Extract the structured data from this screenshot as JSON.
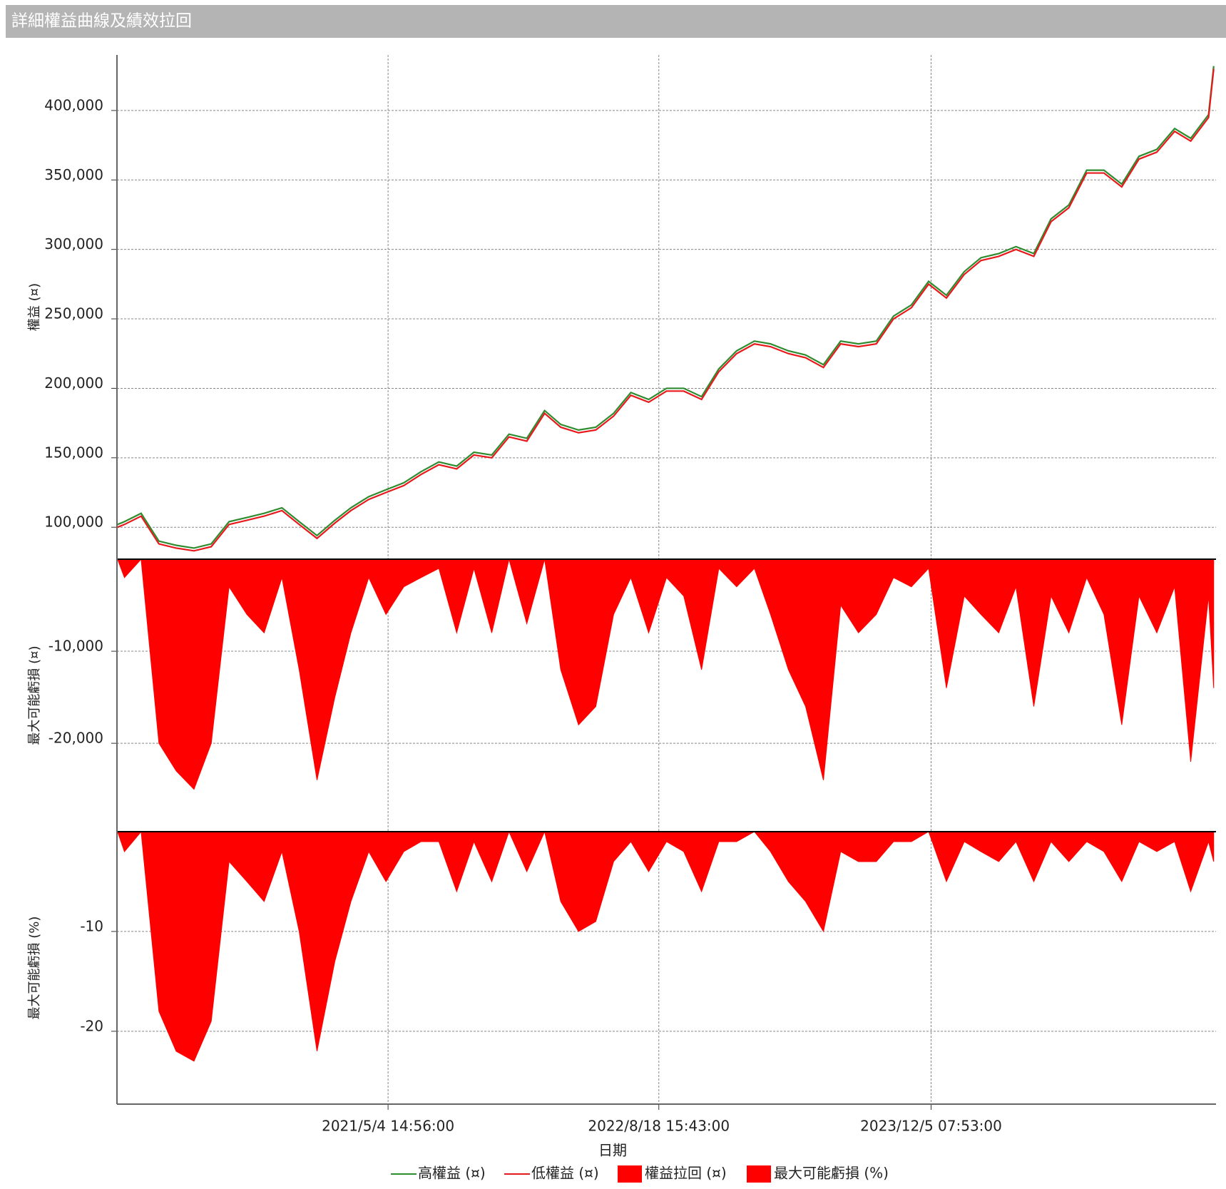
{
  "chart_data": {
    "type": "line",
    "title": "詳細權益曲線及績效拉回",
    "xlabel": "日期",
    "grid": true,
    "xlim": [
      "2020-01-19T00:00:00",
      "2025-04-14T00:00:00"
    ],
    "xticks": [
      {
        "value": "2021-05-04T14:56:00",
        "label": "2021/5/4 14:56:00"
      },
      {
        "value": "2022-08-18T15:43:00",
        "label": "2022/8/18 15:43:00"
      },
      {
        "value": "2023-12-05T07:53:00",
        "label": "2023/12/5 07:53:00"
      }
    ],
    "x": [
      "2020-01-20T00:00:00",
      "2020-02-01T00:00:00",
      "2020-03-01T00:00:00",
      "2020-04-01T00:00:00",
      "2020-05-01T00:00:00",
      "2020-06-01T00:00:00",
      "2020-07-01T00:00:00",
      "2020-08-01T00:00:00",
      "2020-09-01T00:00:00",
      "2020-10-01T00:00:00",
      "2020-11-01T00:00:00",
      "2020-12-01T00:00:00",
      "2021-01-01T00:00:00",
      "2021-02-01T00:00:00",
      "2021-03-01T00:00:00",
      "2021-04-01T00:00:00",
      "2021-05-01T00:00:00",
      "2021-06-01T00:00:00",
      "2021-07-01T00:00:00",
      "2021-08-01T00:00:00",
      "2021-09-01T00:00:00",
      "2021-10-01T00:00:00",
      "2021-11-01T00:00:00",
      "2021-12-01T00:00:00",
      "2022-01-01T00:00:00",
      "2022-02-01T00:00:00",
      "2022-03-01T00:00:00",
      "2022-04-01T00:00:00",
      "2022-05-01T00:00:00",
      "2022-06-01T00:00:00",
      "2022-07-01T00:00:00",
      "2022-08-01T00:00:00",
      "2022-09-01T00:00:00",
      "2022-10-01T00:00:00",
      "2022-11-01T00:00:00",
      "2022-12-01T00:00:00",
      "2023-01-01T00:00:00",
      "2023-02-01T00:00:00",
      "2023-03-01T00:00:00",
      "2023-04-01T00:00:00",
      "2023-05-01T00:00:00",
      "2023-06-01T00:00:00",
      "2023-07-01T00:00:00",
      "2023-08-01T00:00:00",
      "2023-09-01T00:00:00",
      "2023-10-01T00:00:00",
      "2023-11-01T00:00:00",
      "2023-12-01T00:00:00",
      "2024-01-01T00:00:00",
      "2024-02-01T00:00:00",
      "2024-03-01T00:00:00",
      "2024-04-01T00:00:00",
      "2024-05-01T00:00:00",
      "2024-06-01T00:00:00",
      "2024-07-01T00:00:00",
      "2024-08-01T00:00:00",
      "2024-09-01T00:00:00",
      "2024-10-01T00:00:00",
      "2024-11-01T00:00:00",
      "2024-12-01T00:00:00",
      "2025-01-01T00:00:00",
      "2025-02-01T00:00:00",
      "2025-03-01T00:00:00",
      "2025-04-01T00:00:00",
      "2025-04-10T00:00:00"
    ],
    "panels": [
      {
        "type": "line",
        "ylabel": "權益 (¤)",
        "ylim": [
          77000,
          440000
        ],
        "yticks": [
          {
            "value": 100000,
            "label": "100,000"
          },
          {
            "value": 150000,
            "label": "150,000"
          },
          {
            "value": 200000,
            "label": "200,000"
          },
          {
            "value": 250000,
            "label": "250,000"
          },
          {
            "value": 300000,
            "label": "300,000"
          },
          {
            "value": 350000,
            "label": "350,000"
          },
          {
            "value": 400000,
            "label": "400,000"
          }
        ],
        "series": [
          {
            "name": "高權益 (¤)",
            "color": "#2e8b2e",
            "values": [
              102000,
              104000,
              110000,
              90000,
              87000,
              85000,
              88000,
              104000,
              107000,
              110000,
              114000,
              104000,
              94000,
              105000,
              114000,
              122000,
              127000,
              132000,
              140000,
              147000,
              144000,
              154000,
              152000,
              167000,
              164000,
              184000,
              174000,
              170000,
              172000,
              182000,
              197000,
              192000,
              200000,
              200000,
              194000,
              214000,
              227000,
              234000,
              232000,
              227000,
              224000,
              217000,
              234000,
              232000,
              234000,
              252000,
              260000,
              277000,
              267000,
              284000,
              294000,
              297000,
              302000,
              297000,
              322000,
              332000,
              357000,
              357000,
              347000,
              367000,
              372000,
              387000,
              380000,
              397000,
              432000
            ]
          },
          {
            "name": "低權益 (¤)",
            "color": "#e8191c",
            "values": [
              100000,
              102000,
              108000,
              88000,
              85000,
              83000,
              86000,
              102000,
              105000,
              108000,
              112000,
              102000,
              92000,
              103000,
              112000,
              120000,
              125000,
              130000,
              138000,
              145000,
              142000,
              152000,
              150000,
              165000,
              162000,
              182000,
              172000,
              168000,
              170000,
              180000,
              195000,
              190000,
              198000,
              198000,
              192000,
              212000,
              225000,
              232000,
              230000,
              225000,
              222000,
              215000,
              232000,
              230000,
              232000,
              250000,
              258000,
              275000,
              265000,
              282000,
              292000,
              295000,
              300000,
              295000,
              320000,
              330000,
              355000,
              355000,
              345000,
              365000,
              370000,
              385000,
              378000,
              395000,
              430000
            ]
          }
        ]
      },
      {
        "type": "area",
        "ylabel": "最大可能虧損 (¤)",
        "ylim": [
          -29600,
          0
        ],
        "yticks": [
          {
            "value": -10000,
            "label": "-10,000"
          },
          {
            "value": -20000,
            "label": "-20,000"
          }
        ],
        "series": [
          {
            "name": "權益拉回 (¤)",
            "color": "#ff0000",
            "values": [
              0,
              -2000,
              0,
              -20000,
              -23000,
              -25000,
              -20000,
              -3000,
              -6000,
              -8000,
              -2000,
              -12000,
              -24000,
              -15000,
              -8000,
              -2000,
              -6000,
              -3000,
              -2000,
              -1000,
              -8000,
              -1000,
              -8000,
              0,
              -7000,
              0,
              -12000,
              -18000,
              -16000,
              -6000,
              -2000,
              -8000,
              -2000,
              -4000,
              -12000,
              -1000,
              -3000,
              -1000,
              -6000,
              -12000,
              -16000,
              -24000,
              -5000,
              -8000,
              -6000,
              -2000,
              -3000,
              -1000,
              -14000,
              -4000,
              -6000,
              -8000,
              -3000,
              -16000,
              -4000,
              -8000,
              -2000,
              -6000,
              -18000,
              -4000,
              -8000,
              -3000,
              -22000,
              -4000,
              -14000
            ]
          }
        ]
      },
      {
        "type": "area",
        "ylabel": "最大可能虧損 (%)",
        "ylim": [
          -27.3,
          0
        ],
        "yticks": [
          -10,
          -20
        ],
        "series": [
          {
            "name": "最大可能虧損 (%)",
            "color": "#ff0000",
            "values": [
              0,
              -2,
              0,
              -18,
              -22,
              -23,
              -19,
              -3,
              -5,
              -7,
              -2,
              -10,
              -22,
              -13,
              -7,
              -2,
              -5,
              -2,
              -1,
              -1,
              -6,
              -1,
              -5,
              0,
              -4,
              0,
              -7,
              -10,
              -9,
              -3,
              -1,
              -4,
              -1,
              -2,
              -6,
              -1,
              -1,
              0,
              -2,
              -5,
              -7,
              -10,
              -2,
              -3,
              -3,
              -1,
              -1,
              0,
              -5,
              -1,
              -2,
              -3,
              -1,
              -5,
              -1,
              -3,
              -1,
              -2,
              -5,
              -1,
              -2,
              -1,
              -6,
              -1,
              -3
            ]
          }
        ]
      }
    ]
  }
}
